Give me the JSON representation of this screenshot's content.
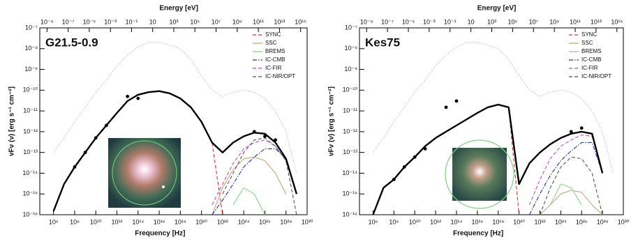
{
  "chart_data": [
    {
      "type": "line",
      "title": "G21.5-0.9",
      "x_label": "Frequency [Hz]",
      "x2_label": "Energy [eV]",
      "y_label": "νFν (ν) [erg s⁻¹ cm⁻²]",
      "xscale": "log",
      "yscale": "log",
      "grid": false,
      "legend": "top-right",
      "xlim": [
        50000.0,
        1e+30
      ],
      "x2lim": [
        2.068e-10,
        4135700000000000.0
      ],
      "ylim": [
        1e-16,
        1e-07
      ],
      "xticks": [
        {
          "value": 1000000.0,
          "label": "10⁶"
        },
        {
          "value": 100000000.0,
          "label": "10⁸"
        },
        {
          "value": 10000000000.0,
          "label": "10¹⁰"
        },
        {
          "value": 1000000000000.0,
          "label": "10¹²"
        },
        {
          "value": 100000000000000.0,
          "label": "10¹⁴"
        },
        {
          "value": 1e+16,
          "label": "10¹⁶"
        },
        {
          "value": 1e+18,
          "label": "10¹⁸"
        },
        {
          "value": 1e+20,
          "label": "10²⁰"
        },
        {
          "value": 1e+22,
          "label": "10²²"
        },
        {
          "value": 1e+24,
          "label": "10²⁴"
        },
        {
          "value": 1e+26,
          "label": "10²⁶"
        },
        {
          "value": 1e+28,
          "label": "10²⁸"
        },
        {
          "value": 1e+30,
          "label": "10³⁰"
        }
      ],
      "x2ticks": [
        {
          "value": 1e-09,
          "label": "10⁻⁹"
        },
        {
          "value": 1e-07,
          "label": "10⁻⁷"
        },
        {
          "value": 1e-05,
          "label": "10⁻⁵"
        },
        {
          "value": 0.001,
          "label": "10⁻³"
        },
        {
          "value": 0.1,
          "label": "10⁻¹"
        },
        {
          "value": 10,
          "label": "10"
        },
        {
          "value": 1000.0,
          "label": "10³"
        },
        {
          "value": 100000.0,
          "label": "10⁵"
        },
        {
          "value": 10000000.0,
          "label": "10⁷"
        },
        {
          "value": 1000000000.0,
          "label": "10⁹"
        },
        {
          "value": 100000000000.0,
          "label": "10¹¹"
        },
        {
          "value": 10000000000000.0,
          "label": "10¹³"
        },
        {
          "value": 1000000000000000.0,
          "label": "10¹⁵"
        }
      ],
      "yticks": [
        {
          "value": 1e-16,
          "label": "10⁻¹⁶"
        },
        {
          "value": 1e-15,
          "label": "10⁻¹⁵"
        },
        {
          "value": 1e-14,
          "label": "10⁻¹⁴"
        },
        {
          "value": 1e-13,
          "label": "10⁻¹³"
        },
        {
          "value": 1e-12,
          "label": "10⁻¹²"
        },
        {
          "value": 1e-11,
          "label": "10⁻¹¹"
        },
        {
          "value": 1e-10,
          "label": "10⁻¹⁰"
        },
        {
          "value": 1e-09,
          "label": "10⁻⁹"
        },
        {
          "value": 1e-08,
          "label": "10⁻⁸"
        },
        {
          "value": 1e-07,
          "label": "10⁻⁷"
        }
      ],
      "x": [
        100000.0,
        1000000.0,
        10000000.0,
        100000000.0,
        1000000000.0,
        10000000000.0,
        100000000000.0,
        1000000000000.0,
        10000000000000.0,
        100000000000000.0,
        1000000000000000.0,
        1e+16,
        1e+17,
        1e+18,
        1e+19,
        1e+20,
        1e+21,
        1e+22,
        1e+23,
        1e+24,
        1e+25,
        1e+26,
        1e+27,
        1e+28,
        1e+29,
        1e+30
      ],
      "series": [
        {
          "color": "#b3c5cc",
          "line_style": "dotted",
          "values": [
            null,
            1e-13,
            5e-13,
            3e-12,
            1.5e-11,
            8e-11,
            3e-10,
            1.5e-09,
            5e-09,
            1.2e-08,
            2e-08,
            2e-08,
            1.5e-08,
            1e-08,
            3e-09,
            5e-10,
            1e-10,
            5e-11,
            8e-11,
            1e-10,
            8e-11,
            4e-11,
            1e-11,
            1e-12,
            1e-14,
            null
          ]
        },
        {
          "name": "SYNC",
          "color": "#e0302a",
          "line_style": "dashed",
          "values": [
            null,
            1.5e-16,
            3e-15,
            2e-14,
            1e-13,
            5e-13,
            2e-12,
            8e-12,
            3e-11,
            6e-11,
            8e-11,
            9e-11,
            7e-11,
            4e-11,
            1.5e-11,
            3e-12,
            3e-13,
            1e-16,
            null,
            null,
            null,
            null,
            null,
            null,
            null,
            null
          ]
        },
        {
          "name": "SSC",
          "color": "#c8a878",
          "line_style": "solid",
          "values": [
            null,
            null,
            null,
            null,
            null,
            null,
            null,
            null,
            null,
            null,
            null,
            null,
            null,
            null,
            null,
            null,
            1e-16,
            2e-15,
            1.5e-14,
            5e-14,
            6e-14,
            4e-14,
            1e-14,
            1e-15,
            null,
            null
          ]
        },
        {
          "name": "BREMS",
          "color": "#8fd08f",
          "line_style": "solid",
          "values": [
            null,
            null,
            null,
            null,
            null,
            null,
            null,
            null,
            null,
            null,
            null,
            null,
            null,
            null,
            null,
            null,
            null,
            null,
            3e-16,
            2e-15,
            1e-15,
            1e-16,
            null,
            null,
            null,
            null
          ]
        },
        {
          "name": "IC-CMB",
          "color": "#2233aa",
          "line_style": "dashdot",
          "values": [
            null,
            null,
            null,
            null,
            null,
            null,
            null,
            null,
            null,
            null,
            null,
            null,
            null,
            null,
            null,
            null,
            1e-16,
            5e-16,
            3e-15,
            2e-14,
            6e-14,
            1.5e-13,
            1.5e-13,
            5e-14,
            1e-15,
            null
          ]
        },
        {
          "name": "IC-FIR",
          "color": "#cc44cc",
          "line_style": "dashed",
          "values": [
            null,
            null,
            null,
            null,
            null,
            null,
            null,
            null,
            null,
            null,
            null,
            null,
            null,
            null,
            null,
            null,
            3e-16,
            3e-15,
            3e-14,
            1.5e-13,
            3e-13,
            4e-13,
            2e-13,
            4e-14,
            1e-15,
            null
          ]
        },
        {
          "name": "IC-NIR/OPT",
          "color": "#555555",
          "line_style": "dashed",
          "values": [
            null,
            null,
            null,
            null,
            null,
            null,
            null,
            null,
            null,
            null,
            null,
            null,
            null,
            null,
            null,
            null,
            null,
            1e-15,
            1e-14,
            1e-13,
            4e-13,
            5e-13,
            2e-13,
            4e-14,
            1e-16,
            null
          ]
        },
        {
          "color": "#000000",
          "line_style": "bold",
          "values": [
            null,
            1.5e-16,
            3e-15,
            2e-14,
            1e-13,
            5e-13,
            2e-12,
            8e-12,
            3e-11,
            6e-11,
            8e-11,
            9e-11,
            7e-11,
            4e-11,
            1.5e-11,
            3e-12,
            3e-13,
            1e-13,
            3e-13,
            6e-13,
            9e-13,
            8e-13,
            3e-13,
            5e-14,
            1e-15,
            null
          ]
        },
        {
          "color": "#000000",
          "marker": "circle",
          "values": [
            null,
            null,
            null,
            2e-14,
            1e-13,
            5e-13,
            2e-12,
            null,
            5e-11,
            4e-11,
            null,
            null,
            null,
            null,
            null,
            null,
            null,
            null,
            null,
            null,
            1e-12,
            6e-13,
            4e-13,
            null,
            null,
            null
          ]
        }
      ]
    },
    {
      "type": "line",
      "title": "Kes75",
      "x_label": "Frequency [Hz]",
      "x2_label": "Energy [eV]",
      "y_label": "νFν (ν) [erg s⁻¹ cm⁻²]",
      "xscale": "log",
      "yscale": "log",
      "grid": false,
      "legend": "top-right",
      "xlim": [
        50000.0,
        1e+30
      ],
      "x2lim": [
        2.068e-10,
        4135700000000000.0
      ],
      "ylim": [
        1e-16,
        1e-07
      ],
      "xticks": [
        {
          "value": 1000000.0,
          "label": "10⁶"
        },
        {
          "value": 100000000.0,
          "label": "10⁸"
        },
        {
          "value": 10000000000.0,
          "label": "10¹⁰"
        },
        {
          "value": 1000000000000.0,
          "label": "10¹²"
        },
        {
          "value": 100000000000000.0,
          "label": "10¹⁴"
        },
        {
          "value": 1e+16,
          "label": "10¹⁶"
        },
        {
          "value": 1e+18,
          "label": "10¹⁸"
        },
        {
          "value": 1e+20,
          "label": "10²⁰"
        },
        {
          "value": 1e+22,
          "label": "10²²"
        },
        {
          "value": 1e+24,
          "label": "10²⁴"
        },
        {
          "value": 1e+26,
          "label": "10²⁶"
        },
        {
          "value": 1e+28,
          "label": "10²⁸"
        },
        {
          "value": 1e+30,
          "label": "10³⁰"
        }
      ],
      "x2ticks": [
        {
          "value": 1e-09,
          "label": "10⁻⁹"
        },
        {
          "value": 1e-07,
          "label": "10⁻⁷"
        },
        {
          "value": 1e-05,
          "label": "10⁻⁵"
        },
        {
          "value": 0.001,
          "label": "10⁻³"
        },
        {
          "value": 0.1,
          "label": "10⁻¹"
        },
        {
          "value": 10,
          "label": "10"
        },
        {
          "value": 1000.0,
          "label": "10³"
        },
        {
          "value": 100000.0,
          "label": "10⁵"
        },
        {
          "value": 10000000.0,
          "label": "10⁷"
        },
        {
          "value": 1000000000.0,
          "label": "10⁹"
        },
        {
          "value": 100000000000.0,
          "label": "10¹¹"
        },
        {
          "value": 10000000000000.0,
          "label": "10¹³"
        },
        {
          "value": 1000000000000000.0,
          "label": "10¹⁵"
        }
      ],
      "yticks": [
        {
          "value": 1e-16,
          "label": "10⁻¹⁶"
        },
        {
          "value": 1e-15,
          "label": "10⁻¹⁵"
        },
        {
          "value": 1e-14,
          "label": "10⁻¹⁴"
        },
        {
          "value": 1e-13,
          "label": "10⁻¹³"
        },
        {
          "value": 1e-12,
          "label": "10⁻¹²"
        },
        {
          "value": 1e-11,
          "label": "10⁻¹¹"
        },
        {
          "value": 1e-10,
          "label": "10⁻¹⁰"
        },
        {
          "value": 1e-09,
          "label": "10⁻⁹"
        },
        {
          "value": 1e-08,
          "label": "10⁻⁸"
        },
        {
          "value": 1e-07,
          "label": "10⁻⁷"
        }
      ],
      "x": [
        100000.0,
        1000000.0,
        10000000.0,
        100000000.0,
        1000000000.0,
        10000000000.0,
        100000000000.0,
        1000000000000.0,
        10000000000000.0,
        100000000000000.0,
        1000000000000000.0,
        1e+16,
        1e+17,
        1e+18,
        1e+19,
        1e+20,
        1e+21,
        1e+22,
        1e+23,
        1e+24,
        1e+25,
        1e+26,
        1e+27,
        1e+28,
        1e+29,
        1e+30
      ],
      "series": [
        {
          "color": "#b3c5cc",
          "line_style": "dotted",
          "values": [
            null,
            1e-13,
            5e-13,
            3e-12,
            1.5e-11,
            8e-11,
            3e-10,
            1.5e-09,
            5e-09,
            1.2e-08,
            2e-08,
            2e-08,
            1.5e-08,
            1e-08,
            3e-09,
            5e-10,
            1e-10,
            5e-11,
            8e-11,
            1e-10,
            8e-11,
            4e-11,
            1e-11,
            1e-12,
            1e-14,
            null
          ]
        },
        {
          "name": "SYNC",
          "color": "#e0302a",
          "line_style": "dashed",
          "values": [
            null,
            1e-16,
            2e-15,
            5e-15,
            2e-14,
            6e-14,
            2e-13,
            5e-13,
            1e-12,
            2e-12,
            4e-12,
            8e-12,
            1.5e-11,
            2e-11,
            1.5e-11,
            1e-16,
            null,
            null,
            null,
            null,
            null,
            null,
            null,
            null,
            null,
            null
          ]
        },
        {
          "name": "SSC",
          "color": "#c8a878",
          "line_style": "solid",
          "values": [
            null,
            null,
            null,
            null,
            null,
            null,
            null,
            null,
            null,
            null,
            null,
            null,
            null,
            null,
            null,
            null,
            null,
            1e-16,
            3e-16,
            1e-15,
            1.5e-15,
            1.2e-15,
            3e-16,
            1e-16,
            null,
            null
          ]
        },
        {
          "name": "BREMS",
          "color": "#8fd08f",
          "line_style": "solid",
          "values": [
            null,
            null,
            null,
            null,
            null,
            null,
            null,
            null,
            null,
            null,
            null,
            null,
            null,
            null,
            null,
            null,
            null,
            null,
            3e-16,
            3e-15,
            2e-15,
            3e-16,
            null,
            null,
            null,
            null
          ]
        },
        {
          "name": "IC-CMB",
          "color": "#2233aa",
          "line_style": "dashdot",
          "values": [
            null,
            null,
            null,
            null,
            null,
            null,
            null,
            null,
            null,
            null,
            null,
            null,
            null,
            null,
            null,
            null,
            1e-16,
            1e-15,
            8e-15,
            4e-14,
            1.2e-13,
            3e-13,
            3e-13,
            1e-14,
            null,
            null
          ]
        },
        {
          "name": "IC-FIR",
          "color": "#cc44cc",
          "line_style": "dashed",
          "values": [
            null,
            null,
            null,
            null,
            null,
            null,
            null,
            null,
            null,
            null,
            null,
            null,
            null,
            null,
            null,
            null,
            3e-16,
            5e-15,
            5e-14,
            2e-13,
            4e-13,
            7e-13,
            6e-13,
            1e-14,
            null,
            null
          ]
        },
        {
          "name": "IC-NIR/OPT",
          "color": "#555555",
          "line_style": "dashed",
          "values": [
            null,
            null,
            null,
            null,
            null,
            null,
            null,
            null,
            null,
            null,
            null,
            null,
            null,
            null,
            null,
            null,
            null,
            1e-16,
            2e-15,
            2e-14,
            6e-14,
            5e-14,
            1e-14,
            1e-16,
            null,
            null
          ]
        },
        {
          "color": "#000000",
          "line_style": "bold",
          "values": [
            null,
            1e-16,
            2e-15,
            5e-15,
            2e-14,
            6e-14,
            2e-13,
            5e-13,
            1e-12,
            2e-12,
            4e-12,
            8e-12,
            1.5e-11,
            2e-11,
            1.5e-11,
            3e-15,
            3e-14,
            1e-13,
            2.5e-13,
            5e-13,
            8e-13,
            1e-12,
            8e-13,
            1e-14,
            null,
            null
          ]
        },
        {
          "color": "#000000",
          "marker": "circle",
          "values": [
            null,
            null,
            null,
            5e-15,
            2e-14,
            6e-14,
            1.5e-13,
            null,
            1.5e-11,
            3e-11,
            null,
            null,
            null,
            null,
            null,
            null,
            null,
            null,
            null,
            null,
            1e-12,
            1.5e-12,
            null,
            null,
            null,
            null
          ]
        }
      ]
    }
  ]
}
